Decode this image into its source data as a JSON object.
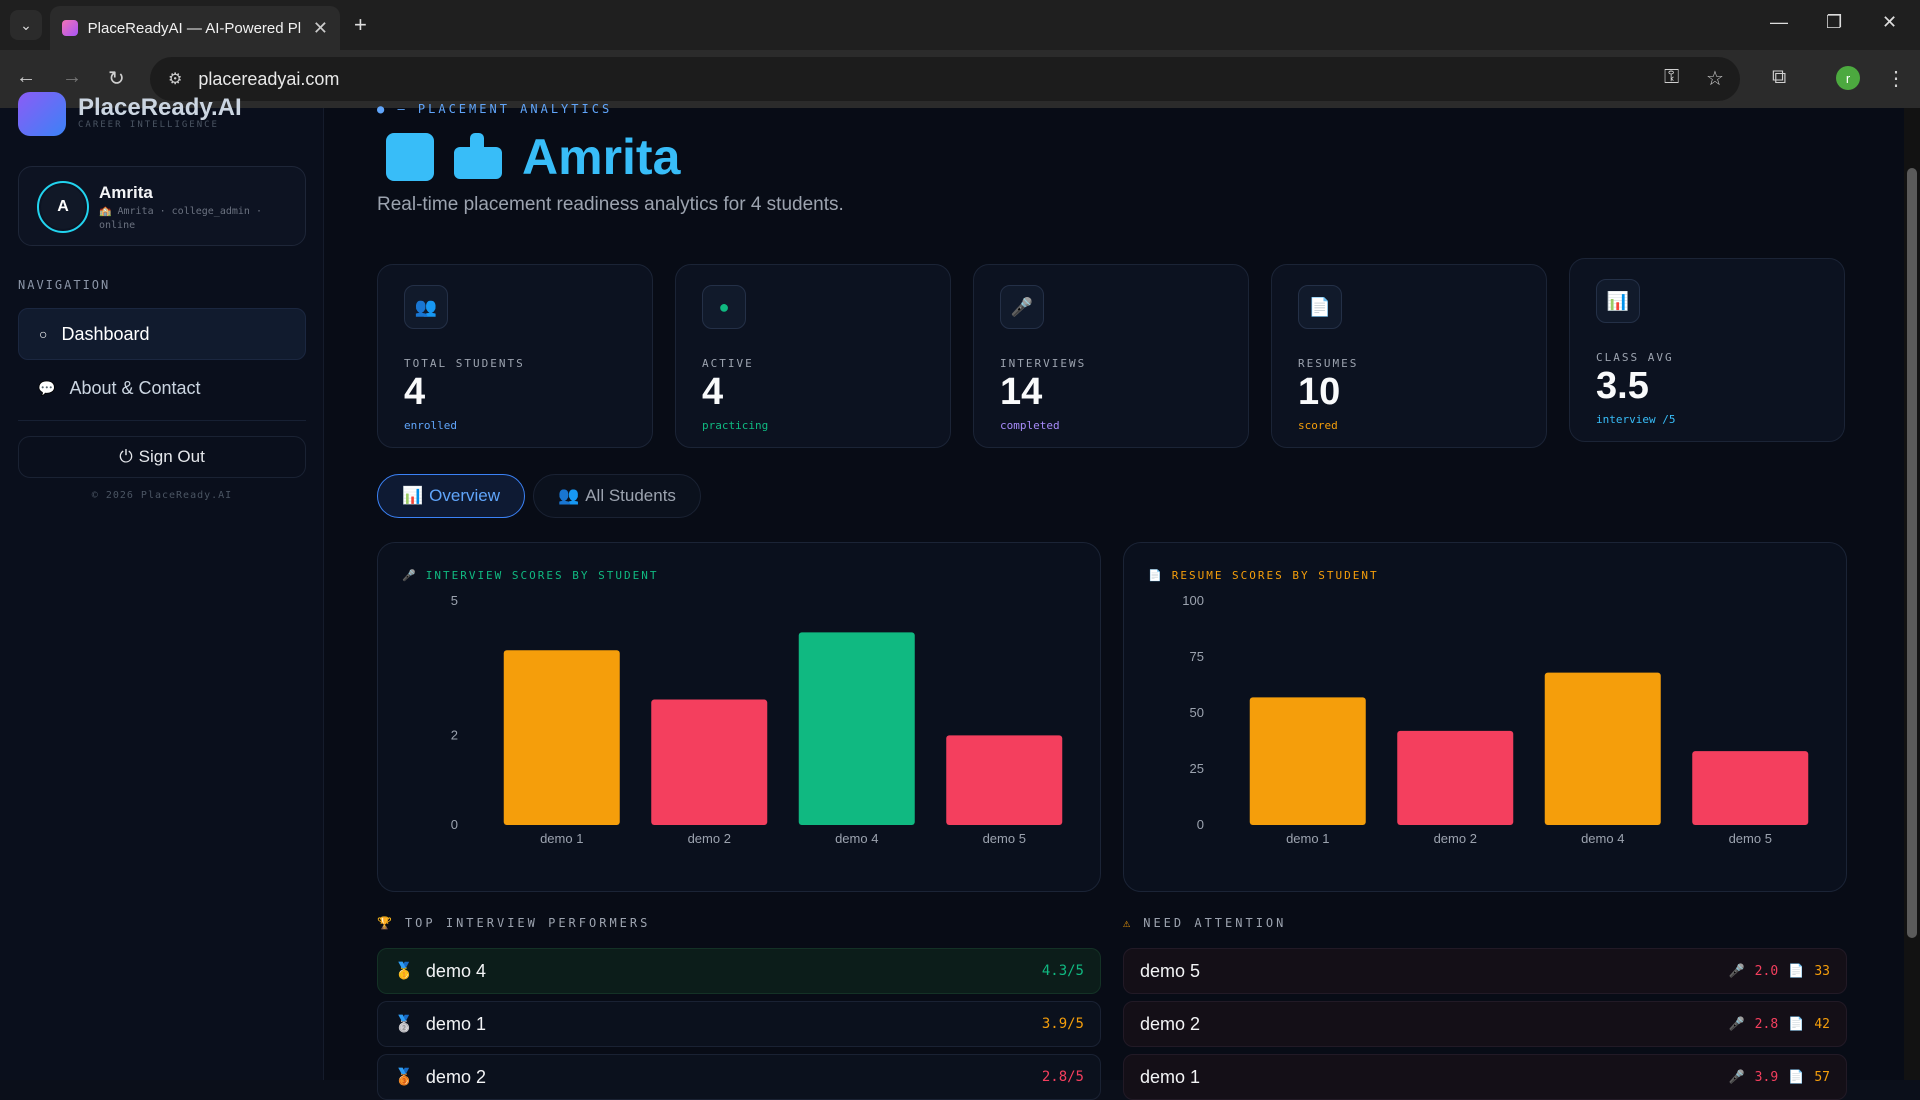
{
  "browser": {
    "tab_title": "PlaceReadyAI — AI-Powered Pl",
    "url": "placereadyai.com",
    "profile_initial": "r"
  },
  "sidebar": {
    "brand_name": "PlaceReady.AI",
    "brand_sub": "CAREER INTELLIGENCE",
    "user": {
      "initial": "A",
      "name": "Amrita",
      "meta": "🏫 Amrita · college_admin · online"
    },
    "nav_label": "NAVIGATION",
    "nav": [
      {
        "label": "Dashboard",
        "icon": "○"
      },
      {
        "label": "About & Contact",
        "icon": "💬"
      }
    ],
    "signout": "Sign Out",
    "copyright": "© 2026 PlaceReady.AI"
  },
  "header": {
    "kicker": "PLACEMENT ANALYTICS",
    "title": "Amrita",
    "subtitle": "Real-time placement readiness analytics for 4 students."
  },
  "stats": [
    {
      "label": "TOTAL STUDENTS",
      "value": "4",
      "sub": "enrolled",
      "icon": "👥",
      "color": "#60a5fa"
    },
    {
      "label": "ACTIVE",
      "value": "4",
      "sub": "practicing",
      "icon": "●",
      "color": "#10b981"
    },
    {
      "label": "INTERVIEWS",
      "value": "14",
      "sub": "completed",
      "icon": "🎤",
      "color": "#a78bfa"
    },
    {
      "label": "RESUMES",
      "value": "10",
      "sub": "scored",
      "icon": "📄",
      "color": "#f59e0b"
    },
    {
      "label": "CLASS AVG",
      "value": "3.5",
      "sub": "interview /5",
      "icon": "📊",
      "color": "#38bdf8"
    }
  ],
  "tabs": [
    {
      "label": "Overview",
      "icon": "📊"
    },
    {
      "label": "All Students",
      "icon": "👥"
    }
  ],
  "chart_data": [
    {
      "type": "bar",
      "title": "INTERVIEW SCORES BY STUDENT",
      "categories": [
        "demo 1",
        "demo 2",
        "demo 4",
        "demo 5"
      ],
      "values": [
        3.9,
        2.8,
        4.3,
        2.0
      ],
      "colors": [
        "#f59e0b",
        "#f43f5e",
        "#10b981",
        "#f43f5e"
      ],
      "yticks": [
        0,
        2,
        5
      ],
      "ylim": [
        0,
        5
      ],
      "title_color": "#10b981"
    },
    {
      "type": "bar",
      "title": "RESUME SCORES BY STUDENT",
      "categories": [
        "demo 1",
        "demo 2",
        "demo 4",
        "demo 5"
      ],
      "values": [
        57,
        42,
        68,
        33
      ],
      "colors": [
        "#f59e0b",
        "#f43f5e",
        "#f59e0b",
        "#f43f5e"
      ],
      "yticks": [
        0,
        25,
        50,
        75,
        100
      ],
      "ylim": [
        0,
        100
      ],
      "title_color": "#f59e0b"
    }
  ],
  "top_performers": {
    "heading": "TOP INTERVIEW PERFORMERS",
    "rows": [
      {
        "medal": "🥇",
        "name": "demo 4",
        "score": "4.3/5",
        "color": "#10b981"
      },
      {
        "medal": "🥈",
        "name": "demo 1",
        "score": "3.9/5",
        "color": "#f59e0b"
      },
      {
        "medal": "🥉",
        "name": "demo 2",
        "score": "2.8/5",
        "color": "#f43f5e"
      }
    ]
  },
  "need_attention": {
    "heading": "NEED ATTENTION",
    "rows": [
      {
        "name": "demo 5",
        "interview": "2.0",
        "resume": "33"
      },
      {
        "name": "demo 2",
        "interview": "2.8",
        "resume": "42"
      },
      {
        "name": "demo 1",
        "interview": "3.9",
        "resume": "57"
      }
    ]
  }
}
